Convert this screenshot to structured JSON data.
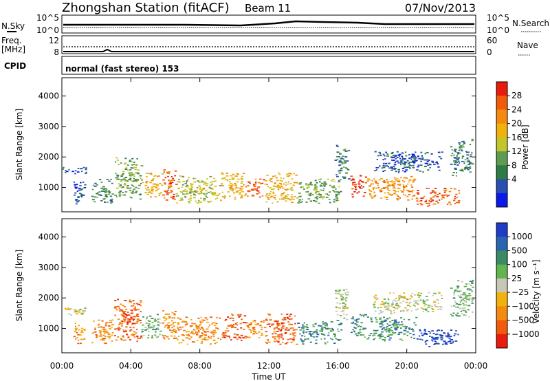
{
  "header": {
    "station": "Zhongshan Station (fitACF)",
    "beam": "Beam 11",
    "date": "07/Nov/2013"
  },
  "summary": {
    "nsky_label": "N.Sky",
    "nsky_ticks": [
      "10^5",
      "10^0"
    ],
    "nsearch_label": "N.Search",
    "freq_label_line1": "Freq.",
    "freq_label_line2": "[MHz]",
    "freq_ticks": [
      "12",
      "8"
    ],
    "nave_label": "Nave",
    "nave_ticks": [
      "60",
      "0"
    ],
    "cpid_label": "CPID",
    "cpid_text": "normal (fast stereo) 153"
  },
  "chart_data": [
    {
      "type": "heatmap",
      "name": "power",
      "xlabel": "Time UT",
      "ylabel": "Slant Range [km]",
      "xlim": [
        0,
        24
      ],
      "ylim": [
        200,
        4600
      ],
      "x_ticks": [
        "00:00",
        "04:00",
        "08:00",
        "12:00",
        "16:00",
        "20:00",
        "00:00"
      ],
      "y_ticks": [
        1000,
        2000,
        3000,
        4000
      ],
      "colorbar": {
        "label": "Power [dB]",
        "ticks": [
          "4",
          "8",
          "12",
          "16",
          "20",
          "24",
          "28"
        ],
        "colors": [
          "#0a1ae8",
          "#2a4fb0",
          "#2f7b45",
          "#5e9c52",
          "#c3c62a",
          "#f2b20d",
          "#f48a10",
          "#f25a0c",
          "#e81c0c"
        ]
      },
      "bands": [
        {
          "t": [
            0.0,
            1.6
          ],
          "r": [
            1450,
            1700
          ],
          "level": 1
        },
        {
          "t": [
            0.6,
            1.3
          ],
          "r": [
            400,
            1200
          ],
          "level": 1
        },
        {
          "t": [
            1.7,
            2.9
          ],
          "r": [
            500,
            1300
          ],
          "level": 2
        },
        {
          "t": [
            3.0,
            4.6
          ],
          "r": [
            600,
            2000
          ],
          "level": 3
        },
        {
          "t": [
            4.6,
            5.8
          ],
          "r": [
            700,
            1500
          ],
          "level": 5
        },
        {
          "t": [
            5.8,
            6.6
          ],
          "r": [
            600,
            1600
          ],
          "level": 7
        },
        {
          "t": [
            6.6,
            9.2
          ],
          "r": [
            500,
            1400
          ],
          "level": 4
        },
        {
          "t": [
            9.2,
            10.6
          ],
          "r": [
            600,
            1500
          ],
          "level": 5
        },
        {
          "t": [
            10.6,
            11.7
          ],
          "r": [
            700,
            1300
          ],
          "level": 7
        },
        {
          "t": [
            11.7,
            13.6
          ],
          "r": [
            500,
            1500
          ],
          "level": 5
        },
        {
          "t": [
            13.6,
            16.2
          ],
          "r": [
            500,
            1300
          ],
          "level": 3
        },
        {
          "t": [
            15.8,
            16.6
          ],
          "r": [
            1300,
            2400
          ],
          "level": 2
        },
        {
          "t": [
            16.7,
            17.6
          ],
          "r": [
            700,
            1500
          ],
          "level": 8
        },
        {
          "t": [
            17.6,
            20.5
          ],
          "r": [
            600,
            1400
          ],
          "level": 6
        },
        {
          "t": [
            18.0,
            22.0
          ],
          "r": [
            1500,
            2200
          ],
          "level": 1
        },
        {
          "t": [
            20.5,
            23.0
          ],
          "r": [
            400,
            1000
          ],
          "level": 7
        },
        {
          "t": [
            22.5,
            23.8
          ],
          "r": [
            1400,
            2600
          ],
          "level": 2
        }
      ]
    },
    {
      "type": "heatmap",
      "name": "velocity",
      "xlabel": "Time UT",
      "ylabel": "Slant Range [km]",
      "xlim": [
        0,
        24
      ],
      "ylim": [
        200,
        4600
      ],
      "x_ticks": [
        "00:00",
        "04:00",
        "08:00",
        "12:00",
        "16:00",
        "20:00",
        "00:00"
      ],
      "y_ticks": [
        1000,
        2000,
        3000,
        4000
      ],
      "colorbar": {
        "label": "Velocity [m s⁻¹]",
        "ticks": [
          "1000",
          "500",
          "100",
          "25",
          "−25",
          "−100",
          "−500",
          "−1000"
        ],
        "colors": [
          "#1f3cc9",
          "#2a63b2",
          "#3a8a66",
          "#62b44c",
          "#c7c7b8",
          "#f2b20d",
          "#f48a10",
          "#f25a0c",
          "#e81c0c"
        ]
      },
      "bands": [
        {
          "t": [
            0.0,
            1.6
          ],
          "r": [
            1450,
            1700
          ],
          "level": 4
        },
        {
          "t": [
            0.6,
            1.3
          ],
          "r": [
            400,
            1200
          ],
          "level": 6
        },
        {
          "t": [
            1.7,
            2.9
          ],
          "r": [
            500,
            1300
          ],
          "level": 6
        },
        {
          "t": [
            3.0,
            4.6
          ],
          "r": [
            600,
            2000
          ],
          "level": 7
        },
        {
          "t": [
            4.6,
            5.8
          ],
          "r": [
            700,
            1500
          ],
          "level": 3
        },
        {
          "t": [
            5.8,
            6.6
          ],
          "r": [
            600,
            1600
          ],
          "level": 6
        },
        {
          "t": [
            6.6,
            9.2
          ],
          "r": [
            500,
            1400
          ],
          "level": 6
        },
        {
          "t": [
            9.2,
            10.6
          ],
          "r": [
            600,
            1500
          ],
          "level": 7
        },
        {
          "t": [
            10.6,
            11.7
          ],
          "r": [
            700,
            1300
          ],
          "level": 6
        },
        {
          "t": [
            11.7,
            13.6
          ],
          "r": [
            500,
            1500
          ],
          "level": 7
        },
        {
          "t": [
            13.6,
            16.2
          ],
          "r": [
            500,
            1300
          ],
          "level": 2
        },
        {
          "t": [
            15.8,
            16.6
          ],
          "r": [
            1300,
            2400
          ],
          "level": 4
        },
        {
          "t": [
            16.7,
            17.6
          ],
          "r": [
            700,
            1500
          ],
          "level": 2
        },
        {
          "t": [
            17.6,
            20.5
          ],
          "r": [
            600,
            1400
          ],
          "level": 2
        },
        {
          "t": [
            18.0,
            22.0
          ],
          "r": [
            1500,
            2200
          ],
          "level": 4
        },
        {
          "t": [
            20.5,
            23.0
          ],
          "r": [
            400,
            1000
          ],
          "level": 0
        },
        {
          "t": [
            22.5,
            23.8
          ],
          "r": [
            1400,
            2600
          ],
          "level": 3
        }
      ]
    }
  ]
}
